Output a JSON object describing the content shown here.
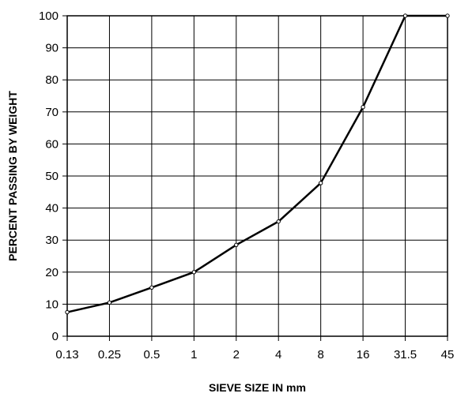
{
  "chart_data": {
    "type": "line",
    "title": "",
    "xlabel": "SIEVE SIZE IN mm",
    "ylabel": "PERCENT PASSING BY WEIGHT",
    "categories": [
      "0.13",
      "0.25",
      "0.5",
      "1",
      "2",
      "4",
      "8",
      "16",
      "31.5",
      "45"
    ],
    "y_ticks": [
      0,
      10,
      20,
      30,
      40,
      50,
      60,
      70,
      80,
      90,
      100
    ],
    "ylim": [
      0,
      100
    ],
    "grid": true,
    "legend": "none",
    "series": [
      {
        "values": [
          7.5,
          10.5,
          15.2,
          20,
          28.5,
          35.8,
          47.8,
          71.5,
          100,
          100
        ]
      }
    ],
    "colors": {
      "line": "#000000",
      "grid": "#000000",
      "background": "#ffffff"
    }
  }
}
